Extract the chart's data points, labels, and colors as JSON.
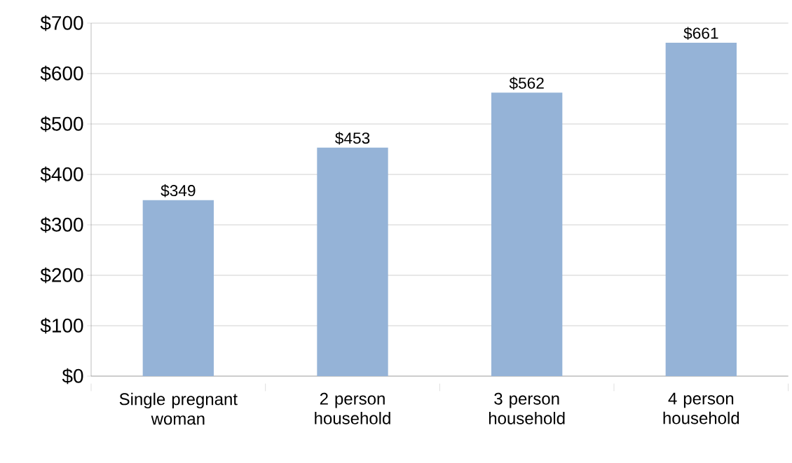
{
  "chart_data": {
    "type": "bar",
    "categories": [
      "Single pregnant woman",
      "2 person household",
      "3 person household",
      "4 person household"
    ],
    "values": [
      349,
      453,
      562,
      661
    ],
    "value_labels": [
      "$349",
      "$453",
      "$562",
      "$661"
    ],
    "color": "#95b3d7",
    "ylim": [
      0,
      700
    ],
    "yticks": [
      {
        "value": 0,
        "label": "$0"
      },
      {
        "value": 100,
        "label": "$100"
      },
      {
        "value": 200,
        "label": "$200"
      },
      {
        "value": 300,
        "label": "$300"
      },
      {
        "value": 400,
        "label": "$400"
      },
      {
        "value": 500,
        "label": "$500"
      },
      {
        "value": 600,
        "label": "$600"
      },
      {
        "value": 700,
        "label": "$700"
      }
    ],
    "grid": "y"
  }
}
